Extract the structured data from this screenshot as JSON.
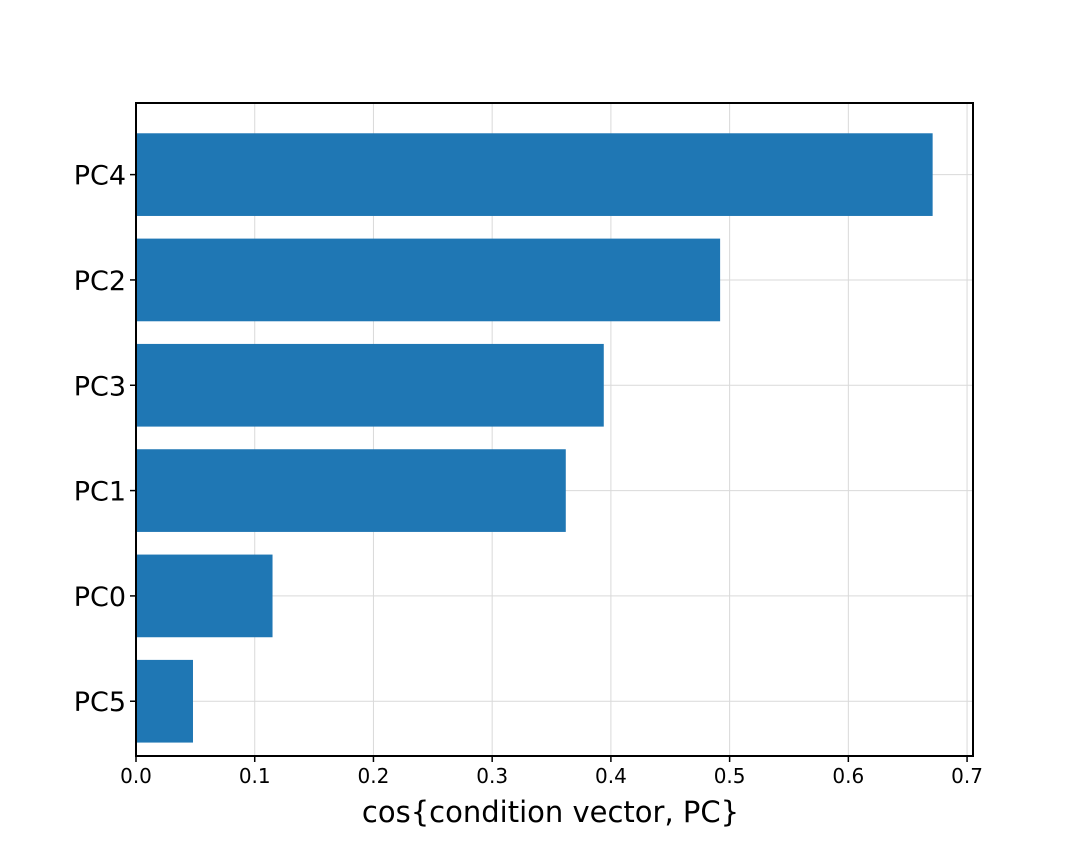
{
  "chart_data": {
    "type": "bar",
    "orientation": "horizontal",
    "categories": [
      "PC4",
      "PC2",
      "PC3",
      "PC1",
      "PC0",
      "PC5"
    ],
    "values": [
      0.671,
      0.492,
      0.394,
      0.362,
      0.115,
      0.048
    ],
    "title": "",
    "xlabel": "cos{condition vector, PC}",
    "ylabel": "",
    "xlim": [
      0,
      0.705
    ],
    "xticks": [
      "0.0",
      "0.1",
      "0.2",
      "0.3",
      "0.4",
      "0.5",
      "0.6",
      "0.7"
    ],
    "grid": true,
    "bar_color": "#1f77b4",
    "grid_color": "#d9d9d9",
    "legend": "none"
  }
}
